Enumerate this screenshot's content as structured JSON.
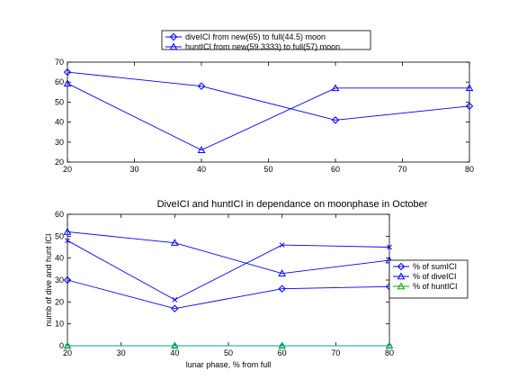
{
  "chart_data": [
    {
      "type": "line",
      "title": "",
      "xlabel": "",
      "ylabel": "",
      "xlim": [
        20,
        80
      ],
      "ylim": [
        20,
        70
      ],
      "xticks": [
        20,
        30,
        40,
        50,
        60,
        70,
        80
      ],
      "yticks": [
        20,
        30,
        40,
        50,
        60,
        70
      ],
      "grid": false,
      "legend_position": "top-center-outside",
      "series": [
        {
          "name": "diveICI from new(65) to full(44.5) moon",
          "marker": "diamond",
          "color": "#0000ff",
          "x": [
            20,
            40,
            60,
            80
          ],
          "y": [
            65,
            58,
            41,
            48
          ]
        },
        {
          "name": "huntICI from new(59.3333) to full(57) moon",
          "marker": "triangle",
          "color": "#0000ff",
          "x": [
            20,
            40,
            60,
            80
          ],
          "y": [
            59.3333,
            26,
            57,
            57
          ]
        }
      ]
    },
    {
      "type": "line",
      "title": "DiveICI and huntICI in dependance on moonphase in October",
      "xlabel": "lunar phase, % from full",
      "ylabel": "numb of dive and hunt ICI",
      "xlim": [
        20,
        80
      ],
      "ylim": [
        0,
        60
      ],
      "xticks": [
        20,
        30,
        40,
        50,
        60,
        70,
        80
      ],
      "yticks": [
        0,
        10,
        20,
        30,
        40,
        50,
        60
      ],
      "grid": false,
      "legend_position": "right-outside",
      "series": [
        {
          "name": "% of sumICI",
          "marker": "diamond",
          "color": "#0000ff",
          "x": [
            20,
            40,
            60,
            80
          ],
          "y": [
            30,
            17,
            26,
            27
          ]
        },
        {
          "name": "% of diveICI",
          "marker": "triangle",
          "color": "#0000ff",
          "x": [
            20,
            40,
            60,
            80
          ],
          "y": [
            52,
            47,
            33,
            39
          ]
        },
        {
          "name": "% of huntICI",
          "marker": "triangle",
          "color": "#00aa00",
          "x": [
            20,
            40,
            60,
            80
          ],
          "y": [
            0,
            0,
            0,
            0
          ]
        },
        {
          "name": "",
          "marker": "x",
          "color": "#0000ff",
          "x": [
            20,
            40,
            60,
            80
          ],
          "y": [
            48,
            21,
            46,
            45
          ]
        },
        {
          "name": "",
          "marker": "circle",
          "color": "#00a0a0",
          "x": [
            20,
            40,
            60,
            80
          ],
          "y": [
            0,
            0,
            0,
            0
          ]
        }
      ]
    }
  ]
}
